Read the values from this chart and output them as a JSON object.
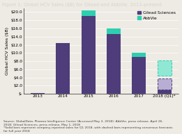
{
  "title": "Figure 1: Global HCV Sales ($B) for Gilead and AbbVie, 2013–present",
  "ylabel": "Global HCV Sales ($B)",
  "categories": [
    "2013",
    "2014",
    "2015",
    "2016",
    "2017",
    "2018 (Q1)*"
  ],
  "gilead_solid": [
    0.15,
    12.4,
    19.1,
    14.6,
    9.1,
    1.1
  ],
  "abbvie_solid": [
    0.0,
    0.0,
    1.4,
    1.4,
    1.0,
    0.6
  ],
  "gilead_dashed": [
    0.0,
    0.0,
    0.0,
    0.0,
    0.0,
    2.7
  ],
  "abbvie_dashed": [
    0.0,
    0.0,
    0.0,
    0.0,
    0.0,
    3.8
  ],
  "gilead_color": "#4e3d7a",
  "abbvie_color": "#2ecfb0",
  "gilead_dashed_color": "#b8aed4",
  "abbvie_dashed_color": "#90e8d4",
  "ylim": [
    0,
    21
  ],
  "yticks": [
    0,
    2,
    4,
    6,
    8,
    10,
    12,
    14,
    16,
    18,
    20
  ],
  "ytick_labels": [
    "$-",
    "$2.0",
    "$4.0",
    "$6.0",
    "$8.0",
    "$10.0",
    "$12.0",
    "$14.0",
    "$16.0",
    "$18.0",
    "$20.0"
  ],
  "bar_width": 0.55,
  "plot_bg_color": "#eeeae4",
  "fig_bg_color": "#eeeae4",
  "title_bg_color": "#2c2c3e",
  "title_text_color": "#d8d4cc",
  "source_text": "Source: GlobalData, Pharma Intelligence Center (Accessed May 3, 2018); AbbVie, press release, April 26,\n2018; Gilead Sciences, press release, May 1, 2018\n*Solid bars represent company-reported sales for Q1 2018, with dashed bars representing consensus forecasts\nfor full year 2018",
  "legend_entries": [
    "Gilead Sciences",
    "AbbVie"
  ],
  "title_fontsize": 4.8,
  "axis_fontsize": 4.5,
  "tick_fontsize": 4.2,
  "source_fontsize": 3.2
}
